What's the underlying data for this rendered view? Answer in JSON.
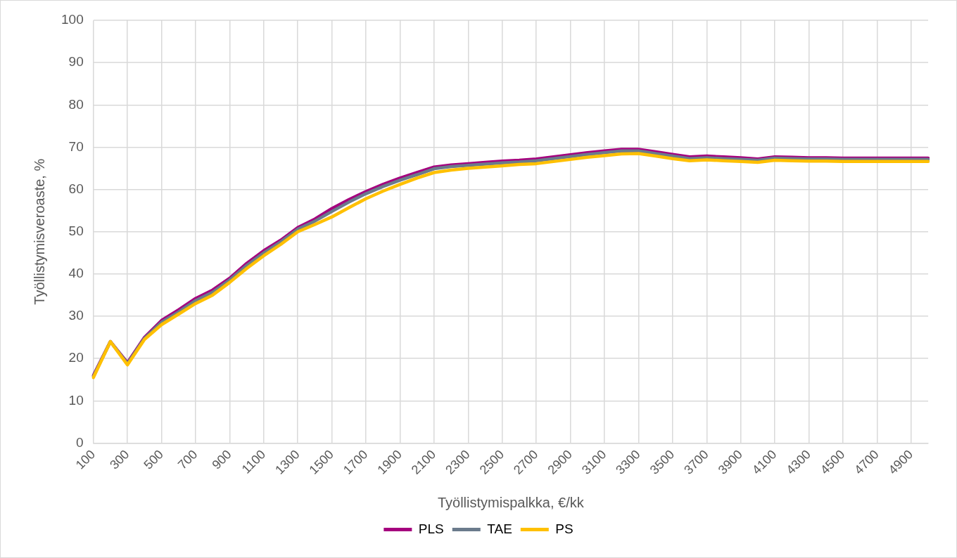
{
  "chart_data": {
    "type": "line",
    "xlabel": "Työllistymispalkka, €/kk",
    "ylabel": "Työllistymisveroaste, %",
    "categories": [
      "100",
      null,
      "300",
      null,
      "500",
      null,
      "700",
      null,
      "900",
      null,
      "1100",
      null,
      "1300",
      null,
      "1500",
      null,
      "1700",
      null,
      "1900",
      null,
      "2100",
      null,
      "2300",
      null,
      "2500",
      null,
      "2700",
      null,
      "2900",
      null,
      "3100",
      null,
      "3300",
      null,
      "3500",
      null,
      "3700",
      null,
      "3900",
      null,
      "4100",
      null,
      "4300",
      null,
      "4500",
      null,
      "4700",
      null,
      "4900",
      null
    ],
    "series": [
      {
        "name": "PLS",
        "color": "#a5007e",
        "values": [
          16,
          24,
          19,
          25,
          29,
          31.5,
          34.2,
          36.2,
          39,
          42.5,
          45.5,
          48,
          51,
          53,
          55.5,
          57.6,
          59.5,
          61.2,
          62.7,
          64,
          65.3,
          65.8,
          66.1,
          66.4,
          66.7,
          66.9,
          67.2,
          67.7,
          68.2,
          68.7,
          69.1,
          69.5,
          69.5,
          68.9,
          68.3,
          67.7,
          67.9,
          67.7,
          67.5,
          67.2,
          67.7,
          67.6,
          67.5,
          67.5,
          67.4,
          67.4,
          67.4,
          67.4,
          67.4,
          67.4
        ]
      },
      {
        "name": "TAE",
        "color": "#6b7b8c",
        "values": [
          15.8,
          24,
          18.8,
          24.8,
          28.6,
          31,
          33.7,
          35.7,
          38.6,
          42,
          45,
          47.6,
          50.6,
          52.5,
          54.8,
          57,
          59,
          60.7,
          62.2,
          63.5,
          64.9,
          65.4,
          65.7,
          66,
          66.3,
          66.5,
          66.8,
          67.3,
          67.8,
          68.3,
          68.7,
          69.1,
          69.1,
          68.5,
          67.9,
          67.3,
          67.5,
          67.3,
          67.1,
          66.9,
          67.4,
          67.3,
          67.2,
          67.2,
          67.1,
          67.1,
          67.1,
          67.1,
          67.1,
          67.1
        ]
      },
      {
        "name": "PS",
        "color": "#ffc000",
        "values": [
          15.5,
          24,
          18.5,
          24.5,
          28,
          30.5,
          33,
          35,
          38,
          41.3,
          44.3,
          47,
          50,
          51.7,
          53.5,
          55.7,
          57.8,
          59.6,
          61.2,
          62.7,
          64,
          64.6,
          65,
          65.3,
          65.6,
          65.9,
          66.1,
          66.6,
          67.1,
          67.6,
          68,
          68.4,
          68.5,
          67.9,
          67.3,
          66.8,
          67,
          66.8,
          66.6,
          66.4,
          66.9,
          66.8,
          66.7,
          66.7,
          66.6,
          66.6,
          66.6,
          66.6,
          66.6,
          66.6
        ]
      }
    ],
    "ylim": [
      0,
      100
    ],
    "yticks": [
      0,
      10,
      20,
      30,
      40,
      50,
      60,
      70,
      80,
      90,
      100
    ],
    "grid": true,
    "legend": "bottom",
    "marker": "none",
    "line_style": "solid"
  }
}
